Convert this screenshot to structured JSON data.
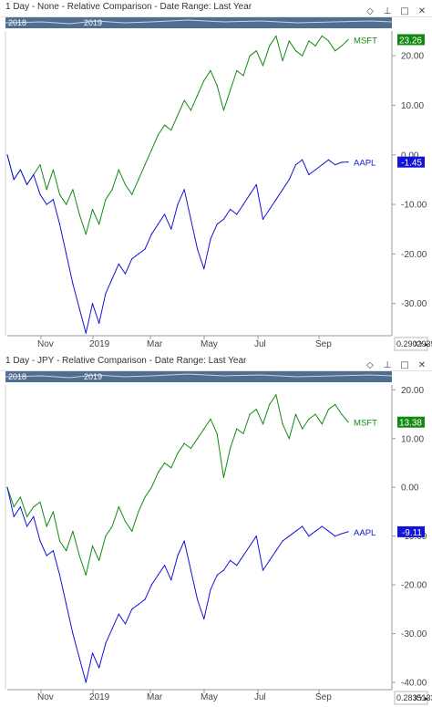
{
  "colors": {
    "msft": "#128a12",
    "aapl": "#1212d8",
    "axis": "#9a9a9a",
    "navigator": "#4f6e92"
  },
  "panels": [
    {
      "title": "1 Day - None - Relative Comparison - Date Range: Last Year",
      "icons": [
        "diamond-icon",
        "pin-icon",
        "maximize-icon",
        "close-icon"
      ],
      "navigator": {
        "left_label": "2018",
        "right_label": "2019"
      },
      "corner_value": "0.2902939",
      "xy_label": "XY",
      "scale_arrow": "▸"
    },
    {
      "title": "1 Day - JPY - Relative Comparison - Date Range: Last Year",
      "icons": [
        "diamond-icon",
        "pin-icon",
        "maximize-icon",
        "close-icon"
      ],
      "navigator": {
        "left_label": "2018",
        "right_label": "2019"
      },
      "corner_value": "0.2835133",
      "xy_label": "XY",
      "scale_arrow": "▸"
    }
  ],
  "chart_data": [
    {
      "type": "line",
      "title": "",
      "x_tick_labels": [
        "Nov",
        "2019",
        "Mar",
        "May",
        "Jul",
        "Sep"
      ],
      "y_tick_labels": [
        "20.00",
        "10.00",
        "0.00",
        "-10.00",
        "-20.00",
        "-30.00"
      ],
      "y_ticks": [
        20,
        10,
        0,
        -10,
        -20,
        -30
      ],
      "ylim": [
        -36.5,
        25
      ],
      "grid": false,
      "series": [
        {
          "name": "MSFT",
          "last_value": "23.26",
          "points": [
            [
              0,
              0
            ],
            [
              3,
              -5
            ],
            [
              6,
              -3
            ],
            [
              9,
              -6
            ],
            [
              12,
              -4
            ],
            [
              15,
              -2
            ],
            [
              18,
              -7
            ],
            [
              21,
              -3
            ],
            [
              24,
              -8
            ],
            [
              27,
              -10
            ],
            [
              30,
              -7
            ],
            [
              33,
              -12
            ],
            [
              36,
              -16
            ],
            [
              39,
              -11
            ],
            [
              42,
              -14
            ],
            [
              45,
              -9
            ],
            [
              48,
              -7
            ],
            [
              51,
              -3
            ],
            [
              54,
              -6
            ],
            [
              57,
              -8
            ],
            [
              60,
              -5
            ],
            [
              63,
              -2
            ],
            [
              66,
              1
            ],
            [
              69,
              4
            ],
            [
              72,
              6
            ],
            [
              75,
              5
            ],
            [
              78,
              8
            ],
            [
              81,
              11
            ],
            [
              84,
              9
            ],
            [
              87,
              12
            ],
            [
              90,
              15
            ],
            [
              93,
              17
            ],
            [
              96,
              14
            ],
            [
              99,
              9
            ],
            [
              102,
              13
            ],
            [
              105,
              17
            ],
            [
              108,
              16
            ],
            [
              111,
              20
            ],
            [
              114,
              21
            ],
            [
              117,
              18
            ],
            [
              120,
              22
            ],
            [
              123,
              24
            ],
            [
              126,
              19
            ],
            [
              129,
              23
            ],
            [
              132,
              21
            ],
            [
              135,
              20
            ],
            [
              138,
              23
            ],
            [
              141,
              22
            ],
            [
              144,
              24
            ],
            [
              147,
              23
            ],
            [
              150,
              21
            ],
            [
              153,
              22
            ],
            [
              156,
              23.26
            ]
          ]
        },
        {
          "name": "AAPL",
          "last_value": "-1.45",
          "points": [
            [
              0,
              0
            ],
            [
              3,
              -5
            ],
            [
              6,
              -3
            ],
            [
              9,
              -6
            ],
            [
              12,
              -4
            ],
            [
              15,
              -8
            ],
            [
              18,
              -10
            ],
            [
              21,
              -9
            ],
            [
              24,
              -14
            ],
            [
              27,
              -20
            ],
            [
              30,
              -26
            ],
            [
              33,
              -31
            ],
            [
              36,
              -36
            ],
            [
              39,
              -30
            ],
            [
              42,
              -34
            ],
            [
              45,
              -28
            ],
            [
              48,
              -25
            ],
            [
              51,
              -22
            ],
            [
              54,
              -24
            ],
            [
              57,
              -21
            ],
            [
              60,
              -20
            ],
            [
              63,
              -19
            ],
            [
              66,
              -16
            ],
            [
              69,
              -14
            ],
            [
              72,
              -12
            ],
            [
              75,
              -15
            ],
            [
              78,
              -10
            ],
            [
              81,
              -7
            ],
            [
              84,
              -13
            ],
            [
              87,
              -19
            ],
            [
              90,
              -23
            ],
            [
              93,
              -17
            ],
            [
              96,
              -14
            ],
            [
              99,
              -13
            ],
            [
              102,
              -11
            ],
            [
              105,
              -12
            ],
            [
              108,
              -10
            ],
            [
              111,
              -8
            ],
            [
              114,
              -6
            ],
            [
              117,
              -13
            ],
            [
              120,
              -11
            ],
            [
              123,
              -9
            ],
            [
              126,
              -7
            ],
            [
              129,
              -5
            ],
            [
              132,
              -2
            ],
            [
              135,
              -1
            ],
            [
              138,
              -4
            ],
            [
              141,
              -3
            ],
            [
              144,
              -2
            ],
            [
              147,
              -1
            ],
            [
              150,
              -2
            ],
            [
              153,
              -1.5
            ],
            [
              156,
              -1.45
            ]
          ]
        }
      ]
    },
    {
      "type": "line",
      "title": "",
      "x_tick_labels": [
        "Nov",
        "2019",
        "Mar",
        "May",
        "Jul",
        "Sep"
      ],
      "y_tick_labels": [
        "20.00",
        "10.00",
        "0.00",
        "-10.00",
        "-20.00",
        "-30.00",
        "-40.00"
      ],
      "y_ticks": [
        20,
        10,
        0,
        -10,
        -20,
        -30,
        -40
      ],
      "ylim": [
        -41.5,
        21
      ],
      "grid": false,
      "series": [
        {
          "name": "MSFT",
          "last_value": "13.38",
          "points": [
            [
              0,
              0
            ],
            [
              3,
              -4
            ],
            [
              6,
              -2
            ],
            [
              9,
              -6
            ],
            [
              12,
              -4
            ],
            [
              15,
              -3
            ],
            [
              18,
              -8
            ],
            [
              21,
              -5
            ],
            [
              24,
              -11
            ],
            [
              27,
              -13
            ],
            [
              30,
              -9
            ],
            [
              33,
              -14
            ],
            [
              36,
              -18
            ],
            [
              39,
              -12
            ],
            [
              42,
              -15
            ],
            [
              45,
              -10
            ],
            [
              48,
              -8
            ],
            [
              51,
              -4
            ],
            [
              54,
              -7
            ],
            [
              57,
              -9
            ],
            [
              60,
              -5
            ],
            [
              63,
              -2
            ],
            [
              66,
              0
            ],
            [
              69,
              3
            ],
            [
              72,
              5
            ],
            [
              75,
              4
            ],
            [
              78,
              7
            ],
            [
              81,
              9
            ],
            [
              84,
              8
            ],
            [
              87,
              10
            ],
            [
              90,
              12
            ],
            [
              93,
              14
            ],
            [
              96,
              11
            ],
            [
              99,
              2
            ],
            [
              102,
              8
            ],
            [
              105,
              12
            ],
            [
              108,
              11
            ],
            [
              111,
              15
            ],
            [
              114,
              16
            ],
            [
              117,
              13
            ],
            [
              120,
              17
            ],
            [
              123,
              19
            ],
            [
              126,
              13
            ],
            [
              129,
              10
            ],
            [
              132,
              15
            ],
            [
              135,
              12
            ],
            [
              138,
              14
            ],
            [
              141,
              15
            ],
            [
              144,
              13
            ],
            [
              147,
              16
            ],
            [
              150,
              17
            ],
            [
              153,
              15
            ],
            [
              156,
              13.38
            ]
          ]
        },
        {
          "name": "AAPL",
          "last_value": "-9.11",
          "points": [
            [
              0,
              0
            ],
            [
              3,
              -6
            ],
            [
              6,
              -4
            ],
            [
              9,
              -8
            ],
            [
              12,
              -6
            ],
            [
              15,
              -11
            ],
            [
              18,
              -14
            ],
            [
              21,
              -13
            ],
            [
              24,
              -18
            ],
            [
              27,
              -24
            ],
            [
              30,
              -30
            ],
            [
              33,
              -35
            ],
            [
              36,
              -40
            ],
            [
              39,
              -34
            ],
            [
              42,
              -37
            ],
            [
              45,
              -32
            ],
            [
              48,
              -29
            ],
            [
              51,
              -26
            ],
            [
              54,
              -28
            ],
            [
              57,
              -25
            ],
            [
              60,
              -24
            ],
            [
              63,
              -23
            ],
            [
              66,
              -20
            ],
            [
              69,
              -18
            ],
            [
              72,
              -16
            ],
            [
              75,
              -19
            ],
            [
              78,
              -14
            ],
            [
              81,
              -11
            ],
            [
              84,
              -17
            ],
            [
              87,
              -23
            ],
            [
              90,
              -27
            ],
            [
              93,
              -21
            ],
            [
              96,
              -18
            ],
            [
              99,
              -17
            ],
            [
              102,
              -15
            ],
            [
              105,
              -16
            ],
            [
              108,
              -14
            ],
            [
              111,
              -12
            ],
            [
              114,
              -10
            ],
            [
              117,
              -17
            ],
            [
              120,
              -15
            ],
            [
              123,
              -13
            ],
            [
              126,
              -11
            ],
            [
              129,
              -10
            ],
            [
              132,
              -9
            ],
            [
              135,
              -8
            ],
            [
              138,
              -10
            ],
            [
              141,
              -9
            ],
            [
              144,
              -8
            ],
            [
              147,
              -9
            ],
            [
              150,
              -10
            ],
            [
              153,
              -9.5
            ],
            [
              156,
              -9.11
            ]
          ]
        }
      ]
    }
  ]
}
